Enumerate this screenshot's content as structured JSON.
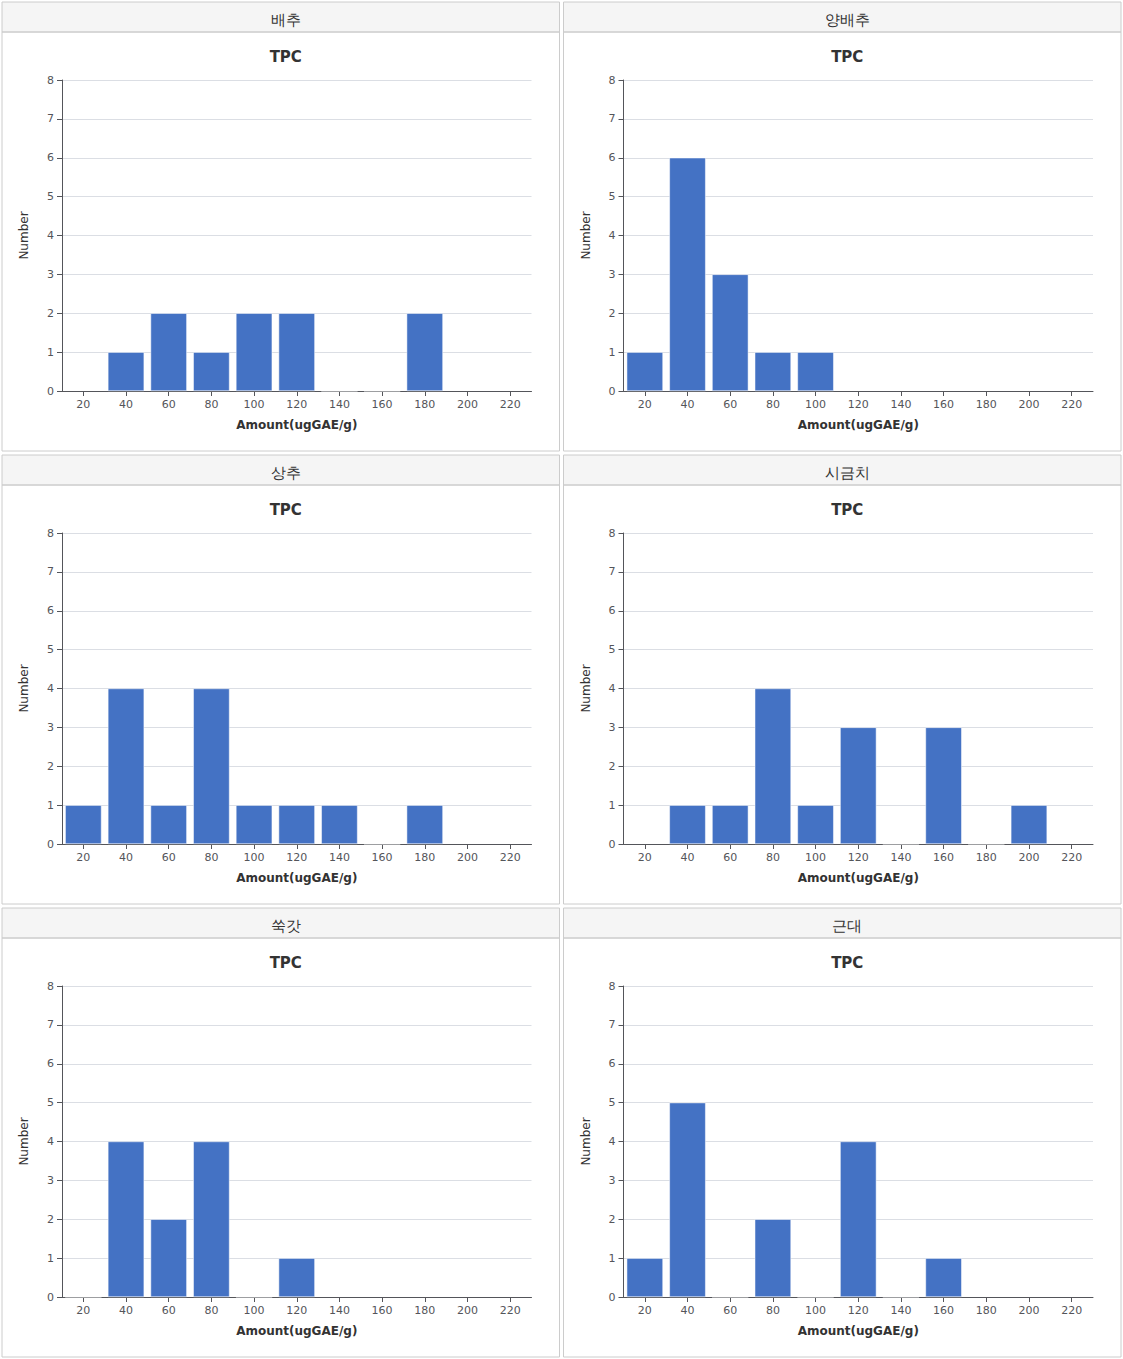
{
  "chart_data": [
    {
      "type": "bar",
      "title": "배추",
      "subtitle": "TPC",
      "xlabel": "Amount(ugGAE/g)",
      "ylabel": "Number",
      "x": [
        40,
        60,
        80,
        100,
        120,
        140,
        160,
        180
      ],
      "values": [
        1,
        2,
        1,
        2,
        2,
        0,
        0,
        2
      ],
      "color": "#4472C4",
      "xlim": [
        10,
        230
      ],
      "xticks": [
        20,
        40,
        60,
        80,
        100,
        120,
        140,
        160,
        180,
        200,
        220
      ],
      "ylim": [
        0,
        8
      ],
      "yticks": [
        0,
        1,
        2,
        3,
        4,
        5,
        6,
        7,
        8
      ],
      "grid": true
    },
    {
      "type": "bar",
      "title": "양배추",
      "subtitle": "TPC",
      "xlabel": "Amount(ugGAE/g)",
      "ylabel": "Number",
      "x": [
        20,
        40,
        60,
        80,
        100
      ],
      "values": [
        1,
        6,
        3,
        1,
        1
      ],
      "color": "#4472C4",
      "xlim": [
        10,
        230
      ],
      "xticks": [
        20,
        40,
        60,
        80,
        100,
        120,
        140,
        160,
        180,
        200,
        220
      ],
      "ylim": [
        0,
        8
      ],
      "yticks": [
        0,
        1,
        2,
        3,
        4,
        5,
        6,
        7,
        8
      ],
      "grid": true
    },
    {
      "type": "bar",
      "title": "상추",
      "subtitle": "TPC",
      "xlabel": "Amount(ugGAE/g)",
      "ylabel": "Number",
      "x": [
        20,
        40,
        60,
        80,
        100,
        120,
        140,
        160,
        180
      ],
      "values": [
        1,
        4,
        1,
        4,
        1,
        1,
        1,
        0,
        1
      ],
      "color": "#4472C4",
      "xlim": [
        10,
        230
      ],
      "xticks": [
        20,
        40,
        60,
        80,
        100,
        120,
        140,
        160,
        180,
        200,
        220
      ],
      "ylim": [
        0,
        8
      ],
      "yticks": [
        0,
        1,
        2,
        3,
        4,
        5,
        6,
        7,
        8
      ],
      "grid": true
    },
    {
      "type": "bar",
      "title": "시금치",
      "subtitle": "TPC",
      "xlabel": "Amount(ugGAE/g)",
      "ylabel": "Number",
      "x": [
        40,
        60,
        80,
        100,
        120,
        140,
        160,
        180,
        200
      ],
      "values": [
        1,
        1,
        4,
        1,
        3,
        0,
        3,
        0,
        1
      ],
      "color": "#4472C4",
      "xlim": [
        10,
        230
      ],
      "xticks": [
        20,
        40,
        60,
        80,
        100,
        120,
        140,
        160,
        180,
        200,
        220
      ],
      "ylim": [
        0,
        8
      ],
      "yticks": [
        0,
        1,
        2,
        3,
        4,
        5,
        6,
        7,
        8
      ],
      "grid": true
    },
    {
      "type": "bar",
      "title": "쑥갓",
      "subtitle": "TPC",
      "xlabel": "Amount(ugGAE/g)",
      "ylabel": "Number",
      "x": [
        20,
        40,
        60,
        80,
        100,
        120
      ],
      "values": [
        0,
        4,
        2,
        4,
        0,
        1
      ],
      "color": "#4472C4",
      "xlim": [
        10,
        230
      ],
      "xticks": [
        20,
        40,
        60,
        80,
        100,
        120,
        140,
        160,
        180,
        200,
        220
      ],
      "ylim": [
        0,
        8
      ],
      "yticks": [
        0,
        1,
        2,
        3,
        4,
        5,
        6,
        7,
        8
      ],
      "grid": true
    },
    {
      "type": "bar",
      "title": "근대",
      "subtitle": "TPC",
      "xlabel": "Amount(ugGAE/g)",
      "ylabel": "Number",
      "x": [
        20,
        40,
        60,
        80,
        100,
        120,
        140,
        160
      ],
      "values": [
        1,
        5,
        0,
        2,
        0,
        4,
        0,
        1
      ],
      "color": "#4472C4",
      "xlim": [
        10,
        230
      ],
      "xticks": [
        20,
        40,
        60,
        80,
        100,
        120,
        140,
        160,
        180,
        200,
        220
      ],
      "ylim": [
        0,
        8
      ],
      "yticks": [
        0,
        1,
        2,
        3,
        4,
        5,
        6,
        7,
        8
      ],
      "grid": true
    }
  ]
}
